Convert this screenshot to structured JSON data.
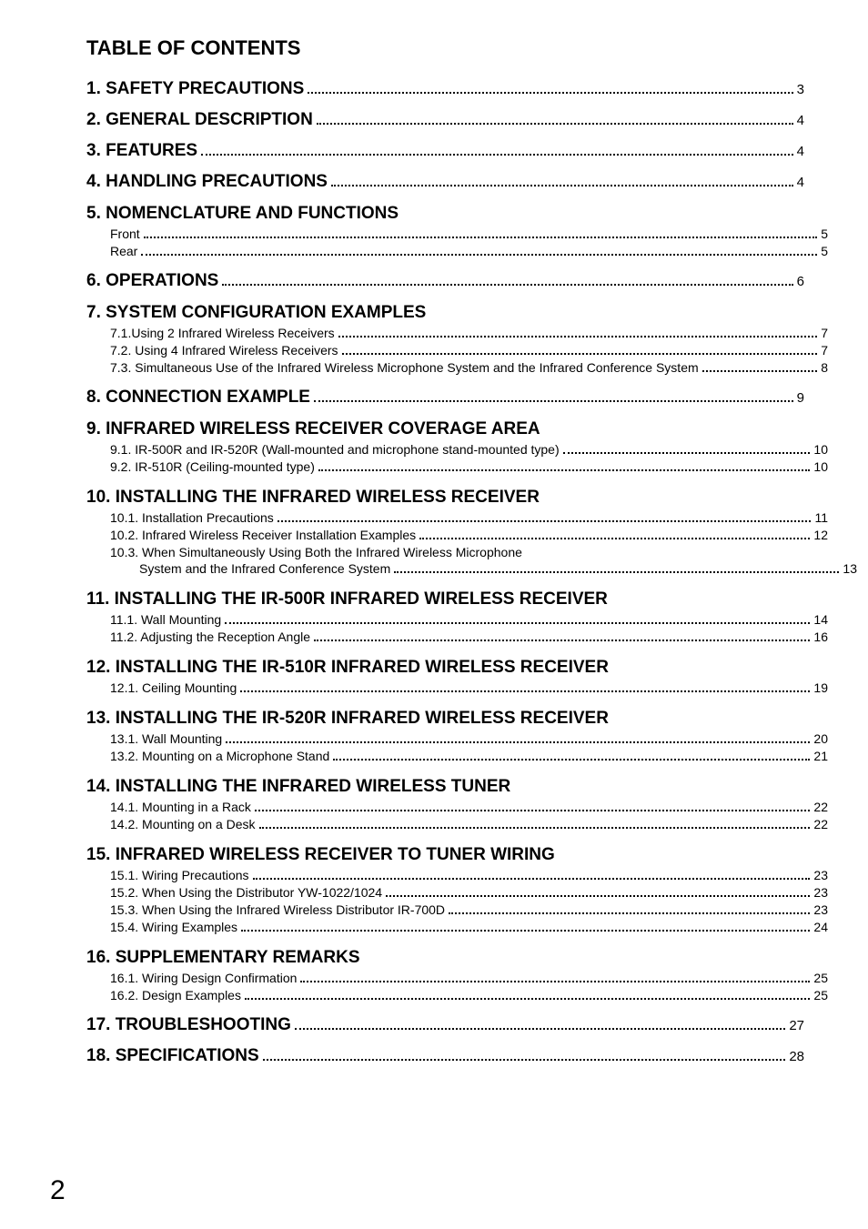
{
  "title": "TABLE OF CONTENTS",
  "page_number": "2",
  "entries": [
    {
      "level": 1,
      "label": "1. SAFETY PRECAUTIONS",
      "page": "3"
    },
    {
      "level": 1,
      "label": "2. GENERAL DESCRIPTION",
      "page": "4"
    },
    {
      "level": 1,
      "label": "3. FEATURES",
      "page": "4"
    },
    {
      "level": 1,
      "label": "4. HANDLING PRECAUTIONS",
      "page": "4"
    },
    {
      "level": 1,
      "label": "5. NOMENCLATURE AND FUNCTIONS",
      "page": null
    },
    {
      "level": 2,
      "label": "Front",
      "page": "5"
    },
    {
      "level": 2,
      "label": "Rear",
      "page": "5"
    },
    {
      "level": 1,
      "label": "6. OPERATIONS",
      "page": "6"
    },
    {
      "level": 1,
      "label": "7. SYSTEM CONFIGURATION EXAMPLES",
      "page": null
    },
    {
      "level": 2,
      "label": "7.1.Using 2 Infrared Wireless Receivers",
      "page": "7"
    },
    {
      "level": 2,
      "label": "7.2. Using 4 Infrared Wireless Receivers",
      "page": "7"
    },
    {
      "level": 2,
      "label": "7.3. Simultaneous Use of the Infrared Wireless Microphone System and the Infrared Conference System",
      "page": "8"
    },
    {
      "level": 1,
      "label": "8. CONNECTION EXAMPLE",
      "page": "9"
    },
    {
      "level": 1,
      "label": "9. INFRARED WIRELESS RECEIVER COVERAGE AREA",
      "page": null
    },
    {
      "level": 2,
      "label": "9.1. IR-500R and IR-520R (Wall-mounted and microphone stand-mounted type)",
      "page": "10"
    },
    {
      "level": 2,
      "label": "9.2. IR-510R (Ceiling-mounted type)",
      "page": "10"
    },
    {
      "level": 1,
      "label": "10. INSTALLING THE INFRARED WIRELESS RECEIVER",
      "page": null
    },
    {
      "level": 2,
      "label": "10.1. Installation Precautions",
      "page": "11"
    },
    {
      "level": 2,
      "label": "10.2. Infrared Wireless Receiver Installation Examples",
      "page": "12"
    },
    {
      "level": 2,
      "label": "10.3. When Simultaneously Using Both the Infrared Wireless Microphone",
      "page": null
    },
    {
      "level": 3,
      "label": "System and the Infrared Conference System",
      "page": "13"
    },
    {
      "level": 1,
      "label": "11. INSTALLING THE IR-500R INFRARED WIRELESS RECEIVER",
      "page": null
    },
    {
      "level": 2,
      "label": "11.1. Wall Mounting",
      "page": "14"
    },
    {
      "level": 2,
      "label": "11.2. Adjusting the Reception Angle",
      "page": "16"
    },
    {
      "level": 1,
      "label": "12. INSTALLING THE IR-510R INFRARED WIRELESS RECEIVER",
      "page": null
    },
    {
      "level": 2,
      "label": "12.1. Ceiling Mounting",
      "page": "19"
    },
    {
      "level": 1,
      "label": "13. INSTALLING THE IR-520R INFRARED WIRELESS RECEIVER",
      "page": null
    },
    {
      "level": 2,
      "label": "13.1. Wall Mounting",
      "page": "20"
    },
    {
      "level": 2,
      "label": "13.2. Mounting on a Microphone Stand",
      "page": "21"
    },
    {
      "level": 1,
      "label": "14. INSTALLING THE INFRARED WIRELESS TUNER",
      "page": null
    },
    {
      "level": 2,
      "label": "14.1. Mounting in a Rack",
      "page": "22"
    },
    {
      "level": 2,
      "label": "14.2. Mounting on a Desk",
      "page": "22"
    },
    {
      "level": 1,
      "label": "15. INFRARED WIRELESS RECEIVER TO TUNER WIRING",
      "page": null
    },
    {
      "level": 2,
      "label": "15.1. Wiring Precautions",
      "page": "23"
    },
    {
      "level": 2,
      "label": "15.2. When Using the Distributor YW-1022/1024",
      "page": "23"
    },
    {
      "level": 2,
      "label": "15.3. When Using the Infrared Wireless Distributor IR-700D",
      "page": "23"
    },
    {
      "level": 2,
      "label": "15.4. Wiring Examples",
      "page": "24"
    },
    {
      "level": 1,
      "label": "16. SUPPLEMENTARY REMARKS",
      "page": null
    },
    {
      "level": 2,
      "label": "16.1. Wiring Design Confirmation",
      "page": "25"
    },
    {
      "level": 2,
      "label": "16.2. Design Examples",
      "page": "25"
    },
    {
      "level": 1,
      "label": "17. TROUBLESHOOTING",
      "page": "27"
    },
    {
      "level": 1,
      "label": "18. SPECIFICATIONS",
      "page": "28"
    }
  ]
}
